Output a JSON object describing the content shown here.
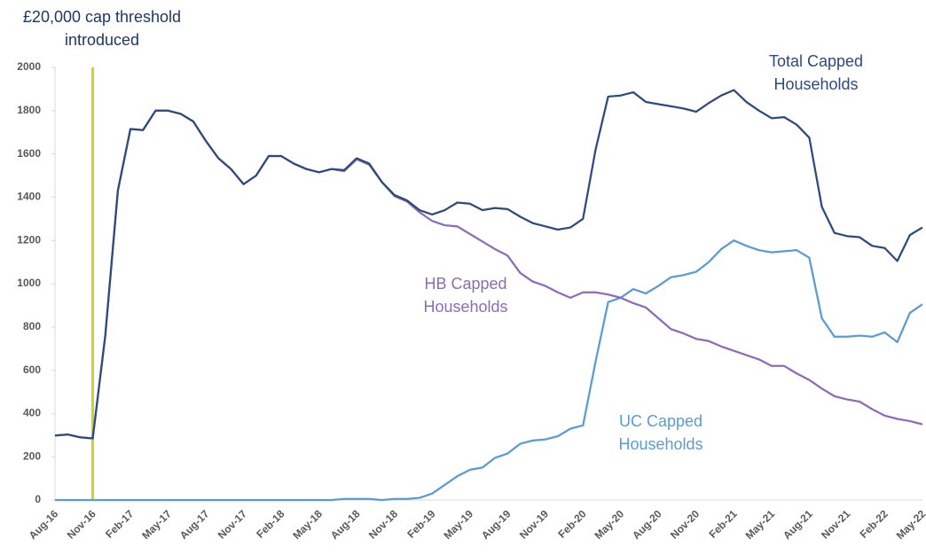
{
  "chart_data": {
    "type": "line",
    "categories": [
      "Aug-16",
      null,
      null,
      "Nov-16",
      null,
      null,
      "Feb-17",
      null,
      null,
      "May-17",
      null,
      null,
      "Aug-17",
      null,
      null,
      "Nov-17",
      null,
      null,
      "Feb-18",
      null,
      null,
      "May-18",
      null,
      null,
      "Aug-18",
      null,
      null,
      "Nov-18",
      null,
      null,
      "Feb-19",
      null,
      null,
      "May-19",
      null,
      null,
      "Aug-19",
      null,
      null,
      "Nov-19",
      null,
      null,
      "Feb-20",
      null,
      null,
      "May-20",
      null,
      null,
      "Aug-20",
      null,
      null,
      "Nov-20",
      null,
      null,
      "Feb-21",
      null,
      null,
      "May-21",
      null,
      null,
      "Aug-21",
      null,
      null,
      "Nov-21",
      null,
      null,
      "Feb-22",
      null,
      null,
      "May-22"
    ],
    "series": [
      {
        "name": "Total Capped Households",
        "color": "#2e4a7d",
        "values": [
          298,
          303,
          290,
          285,
          760,
          1430,
          1715,
          1710,
          1800,
          1800,
          1785,
          1750,
          1660,
          1580,
          1530,
          1460,
          1500,
          1590,
          1590,
          1555,
          1530,
          1515,
          1530,
          1525,
          1580,
          1555,
          1470,
          1410,
          1385,
          1340,
          1320,
          1340,
          1375,
          1370,
          1340,
          1350,
          1345,
          1310,
          1280,
          1265,
          1250,
          1260,
          1300,
          1620,
          1865,
          1870,
          1885,
          1840,
          1830,
          1820,
          1810,
          1795,
          1835,
          1870,
          1895,
          1840,
          1800,
          1765,
          1770,
          1735,
          1675,
          1355,
          1235,
          1220,
          1215,
          1175,
          1165,
          1105,
          1225,
          1260
        ]
      },
      {
        "name": "HB Capped Households",
        "color": "#8e6bb8",
        "values": [
          298,
          303,
          290,
          285,
          760,
          1430,
          1715,
          1710,
          1800,
          1800,
          1785,
          1750,
          1660,
          1580,
          1530,
          1460,
          1500,
          1590,
          1590,
          1555,
          1530,
          1515,
          1530,
          1520,
          1575,
          1550,
          1470,
          1405,
          1380,
          1330,
          1290,
          1270,
          1265,
          1230,
          1195,
          1160,
          1130,
          1050,
          1010,
          990,
          960,
          935,
          960,
          960,
          950,
          935,
          910,
          890,
          840,
          790,
          770,
          745,
          735,
          710,
          690,
          670,
          650,
          620,
          620,
          585,
          555,
          515,
          480,
          465,
          455,
          420,
          390,
          375,
          365,
          350
        ]
      },
      {
        "name": "UC Capped Households",
        "color": "#5b9bd5",
        "values": [
          0,
          0,
          0,
          0,
          0,
          0,
          0,
          0,
          0,
          0,
          0,
          0,
          0,
          0,
          0,
          0,
          0,
          0,
          0,
          0,
          0,
          0,
          0,
          5,
          5,
          5,
          0,
          5,
          5,
          10,
          30,
          70,
          110,
          140,
          150,
          195,
          215,
          260,
          275,
          280,
          295,
          330,
          345,
          640,
          915,
          935,
          975,
          955,
          990,
          1030,
          1040,
          1055,
          1100,
          1160,
          1200,
          1175,
          1155,
          1145,
          1150,
          1155,
          1120,
          840,
          755,
          755,
          760,
          755,
          775,
          730,
          865,
          905
        ]
      }
    ],
    "annotation": {
      "text": "£20,000 cap threshold introduced",
      "x": "Nov-16",
      "color": "#c8d42a"
    },
    "ylim": [
      0,
      2000
    ],
    "yticks": [
      0,
      200,
      400,
      600,
      800,
      1000,
      1200,
      1400,
      1600,
      1800,
      2000
    ],
    "grid": false
  }
}
